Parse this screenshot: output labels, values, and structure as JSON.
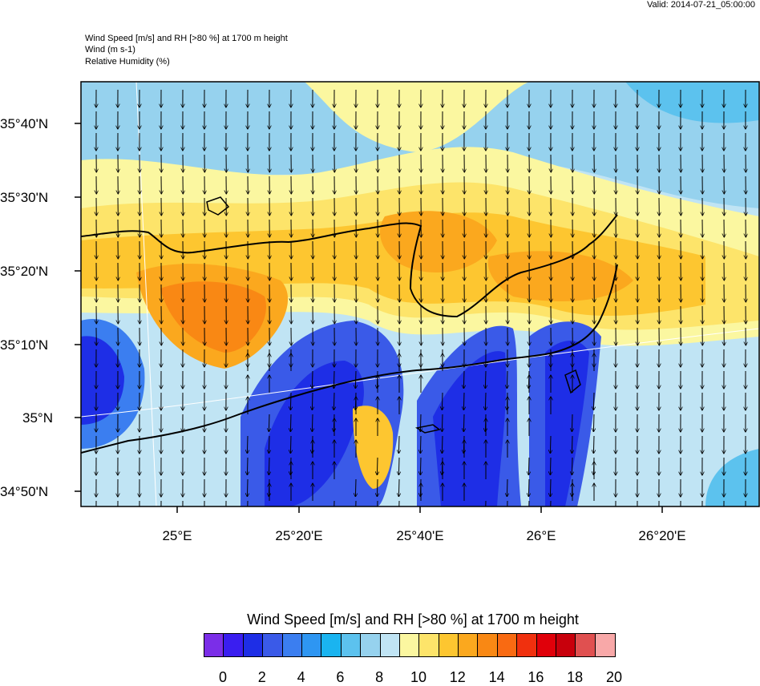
{
  "valid": "Valid: 2014-07-21_05:00:00",
  "header": {
    "line1": "Wind Speed [m/s] and RH [>80 %] at 1700 m height",
    "line2": "Wind   (m s-1)",
    "line3": "Relative Humidity   (%)"
  },
  "lat_labels": [
    "35°40'N",
    "35°30'N",
    "35°20'N",
    "35°10'N",
    "35°N",
    "34°50'N"
  ],
  "lon_labels": [
    "25°E",
    "25°20'E",
    "25°40'E",
    "26°E",
    "26°20'E"
  ],
  "colorbar": {
    "title": "Wind Speed [m/s] and RH [>80 %] at 1700 m height",
    "ticks": [
      "0",
      "2",
      "4",
      "6",
      "8",
      "10",
      "12",
      "14",
      "16",
      "18",
      "20"
    ],
    "colors": [
      "#7b2ee8",
      "#3a1ef0",
      "#1e2ee6",
      "#3a5ae8",
      "#3b7ef0",
      "#2e96f2",
      "#1ab4f0",
      "#5cc2ee",
      "#96d2ee",
      "#c0e4f4",
      "#fbf7a0",
      "#fde46a",
      "#fdc630",
      "#fba81e",
      "#f98814",
      "#f96a12",
      "#f0300e",
      "#e0000a",
      "#c8000c",
      "#e05050",
      "#f8a8a8"
    ]
  },
  "map_colors": {
    "lightblue": "#c0e4f4",
    "skyblue": "#96d2ee",
    "yellow": "#fbf7a0",
    "gold": "#fde46a",
    "orange1": "#fdc630",
    "orange2": "#fba81e",
    "orange3": "#f98814",
    "deepblue": "#1e2ee6",
    "blue2": "#3a5ae8",
    "blue3": "#3b7ef0"
  }
}
